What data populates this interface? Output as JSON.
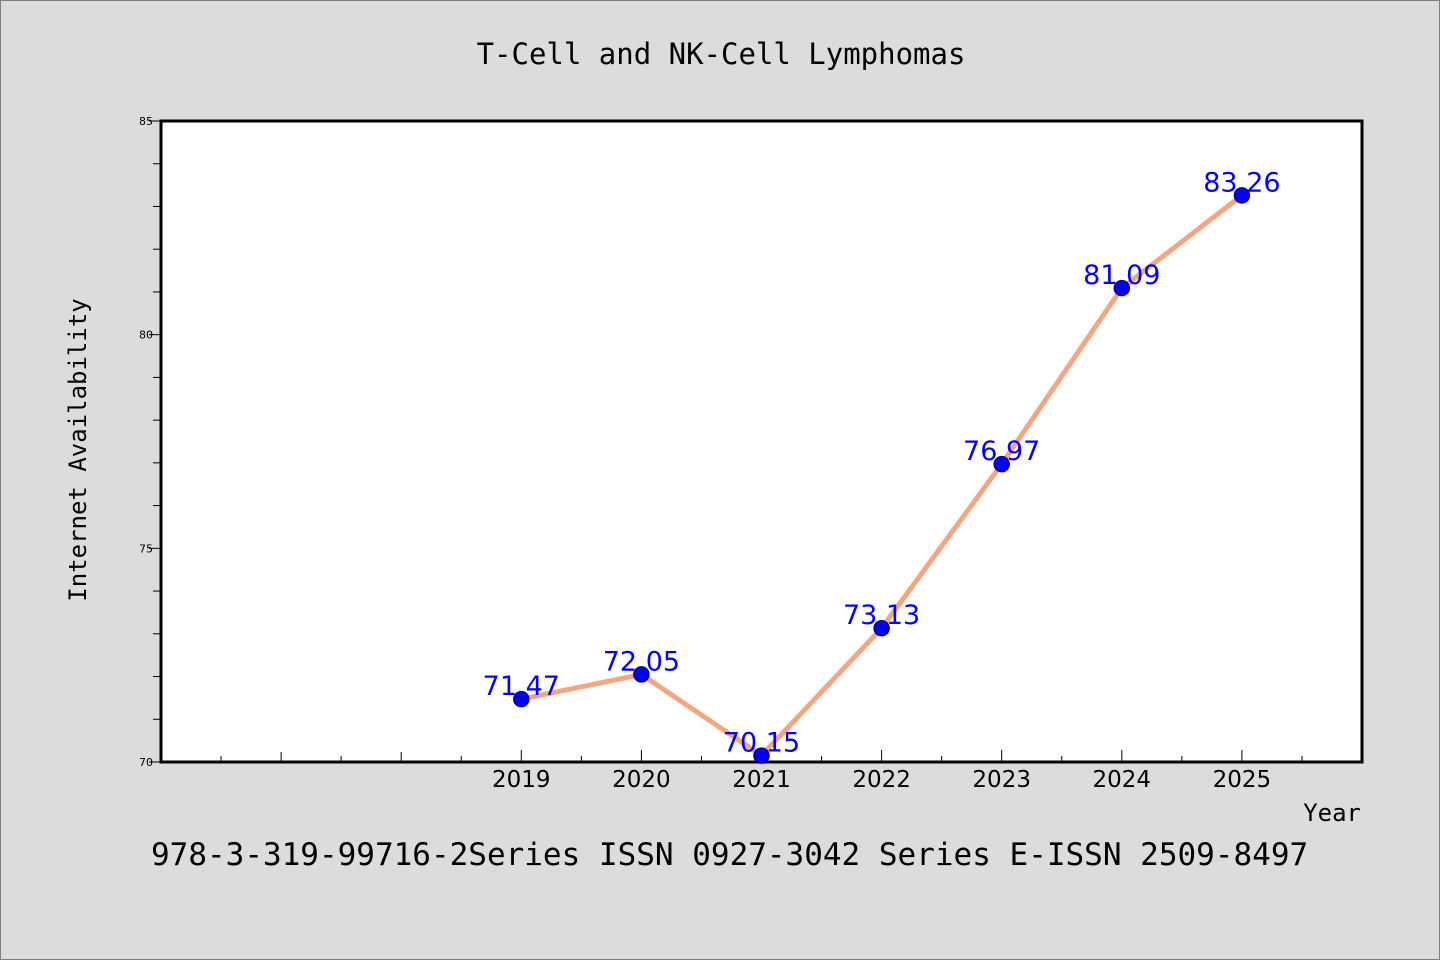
{
  "chart_data": {
    "type": "line",
    "title": "T-Cell and NK-Cell Lymphomas",
    "xlabel": "Year",
    "ylabel": "Internet Availability",
    "x": [
      2019,
      2020,
      2021,
      2022,
      2023,
      2024,
      2025
    ],
    "series": [
      {
        "values": [
          71.47,
          72.05,
          70.15,
          73.13,
          76.97,
          81.09,
          83.26
        ],
        "labels": [
          "71.47",
          "72.05",
          "70.15",
          "73.13",
          "76.97",
          "81.09",
          "83.26"
        ]
      }
    ],
    "xlim": [
      2016,
      2026
    ],
    "ylim": [
      70,
      85
    ],
    "y_ticks": [
      "70",
      "75",
      "80",
      "85"
    ],
    "x_ticks": [
      "2019",
      "2020",
      "2021",
      "2022",
      "2023",
      "2024",
      "2025"
    ],
    "grid": false,
    "legend": "none",
    "colors": {
      "line": "#f4a582",
      "marker": "#0000ff",
      "marker_edge": "#00008b",
      "data_label": "#0000ff",
      "background": "#dcdcdc",
      "plot_background": "#ffffff"
    }
  },
  "footer": {
    "text": "978-3-319-99716-2Series ISSN 0927-3042 Series E-ISSN 2509-8497"
  }
}
